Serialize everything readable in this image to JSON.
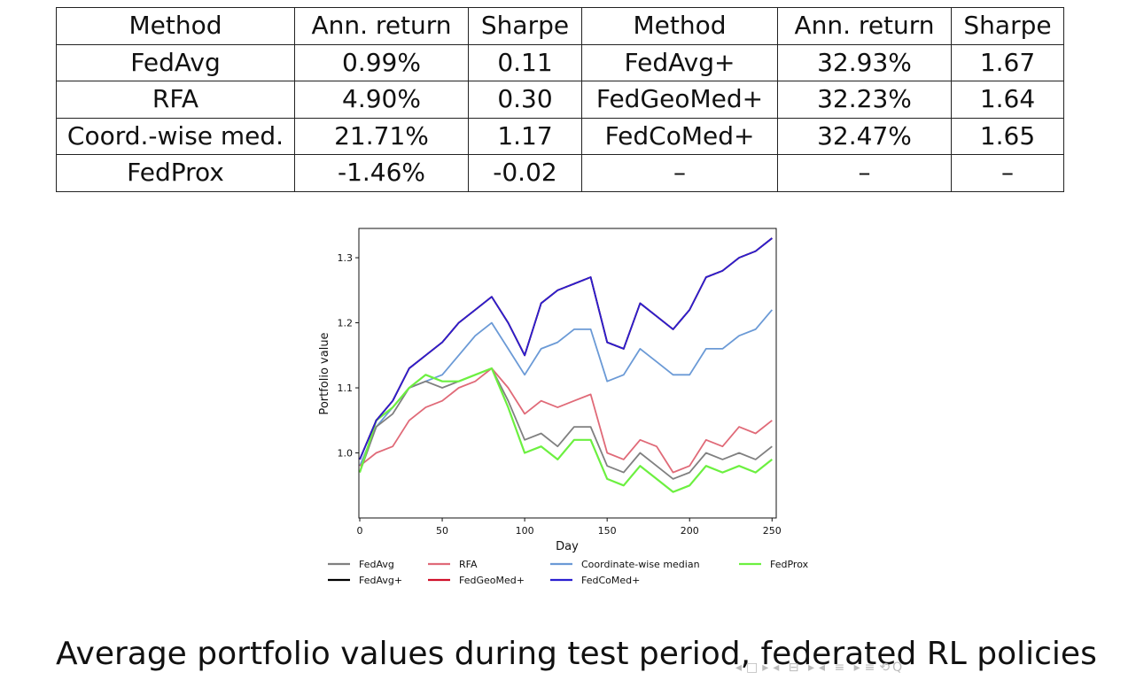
{
  "table": {
    "headers": [
      "Method",
      "Ann. return",
      "Sharpe",
      "Method",
      "Ann. return",
      "Sharpe"
    ],
    "rows": [
      [
        "FedAvg",
        "0.99%",
        "0.11",
        "FedAvg+",
        "32.93%",
        "1.67"
      ],
      [
        "RFA",
        "4.90%",
        "0.30",
        "FedGeoMed+",
        "32.23%",
        "1.64"
      ],
      [
        "Coord.-wise med.",
        "21.71%",
        "1.17",
        "FedCoMed+",
        "32.47%",
        "1.65"
      ],
      [
        "FedProx",
        "-1.46%",
        "-0.02",
        "–",
        "–",
        "–"
      ]
    ]
  },
  "chart_data": {
    "type": "line",
    "xlabel": "Day",
    "ylabel": "Portfolio value",
    "xlim": [
      0,
      252
    ],
    "ylim": [
      0.9,
      1.345
    ],
    "xticks": [
      "0",
      "50",
      "100",
      "150",
      "200",
      "250"
    ],
    "yticks": [
      "1.0",
      "1.1",
      "1.2",
      "1.3"
    ],
    "legend": "below",
    "grid": false,
    "x": [
      0,
      10,
      20,
      30,
      40,
      50,
      60,
      70,
      80,
      90,
      100,
      110,
      120,
      130,
      140,
      150,
      160,
      170,
      180,
      190,
      200,
      210,
      220,
      230,
      240,
      250
    ],
    "series": [
      {
        "name": "FedAvg",
        "color": "#808080",
        "values": [
          0.97,
          1.04,
          1.06,
          1.1,
          1.11,
          1.1,
          1.11,
          1.12,
          1.13,
          1.08,
          1.02,
          1.03,
          1.01,
          1.04,
          1.04,
          0.98,
          0.97,
          1.0,
          0.98,
          0.96,
          0.97,
          1.0,
          0.99,
          1.0,
          0.99,
          1.01
        ]
      },
      {
        "name": "RFA",
        "color": "#e06a78",
        "values": [
          0.98,
          1.0,
          1.01,
          1.05,
          1.07,
          1.08,
          1.1,
          1.11,
          1.13,
          1.1,
          1.06,
          1.08,
          1.07,
          1.08,
          1.09,
          1.0,
          0.99,
          1.02,
          1.01,
          0.97,
          0.98,
          1.02,
          1.01,
          1.04,
          1.03,
          1.05
        ]
      },
      {
        "name": "Coordinate-wise median",
        "color": "#6b9ad6",
        "values": [
          0.98,
          1.04,
          1.07,
          1.1,
          1.11,
          1.12,
          1.15,
          1.18,
          1.2,
          1.16,
          1.12,
          1.16,
          1.17,
          1.19,
          1.19,
          1.11,
          1.12,
          1.16,
          1.14,
          1.12,
          1.12,
          1.16,
          1.16,
          1.18,
          1.19,
          1.22
        ]
      },
      {
        "name": "FedProx",
        "color": "#6cf040",
        "values": [
          0.97,
          1.05,
          1.07,
          1.1,
          1.12,
          1.11,
          1.11,
          1.12,
          1.13,
          1.07,
          1.0,
          1.01,
          0.99,
          1.02,
          1.02,
          0.96,
          0.95,
          0.98,
          0.96,
          0.94,
          0.95,
          0.98,
          0.97,
          0.98,
          0.97,
          0.99
        ]
      },
      {
        "name": "FedAvg+",
        "color": "#000000",
        "values": [
          0.99,
          1.05,
          1.08,
          1.13,
          1.15,
          1.17,
          1.2,
          1.22,
          1.24,
          1.2,
          1.15,
          1.23,
          1.25,
          1.26,
          1.27,
          1.17,
          1.16,
          1.23,
          1.21,
          1.19,
          1.22,
          1.27,
          1.28,
          1.3,
          1.31,
          1.33
        ]
      },
      {
        "name": "FedGeoMed+",
        "color": "#d0102a",
        "values": [
          0.99,
          1.05,
          1.08,
          1.13,
          1.15,
          1.17,
          1.2,
          1.22,
          1.24,
          1.2,
          1.15,
          1.23,
          1.25,
          1.26,
          1.27,
          1.17,
          1.16,
          1.23,
          1.21,
          1.19,
          1.22,
          1.27,
          1.28,
          1.3,
          1.31,
          1.33
        ]
      },
      {
        "name": "FedCoMed+",
        "color": "#2a1fd0",
        "values": [
          0.99,
          1.05,
          1.08,
          1.13,
          1.15,
          1.17,
          1.2,
          1.22,
          1.24,
          1.2,
          1.15,
          1.23,
          1.25,
          1.26,
          1.27,
          1.17,
          1.16,
          1.23,
          1.21,
          1.19,
          1.22,
          1.27,
          1.28,
          1.3,
          1.31,
          1.33
        ]
      }
    ]
  },
  "caption": "Average portfolio values during test period, federated RL policies",
  "nav_icons": [
    "left-arrow",
    "frame",
    "section",
    "subsection",
    "right-arrow",
    "align",
    "zoom"
  ]
}
